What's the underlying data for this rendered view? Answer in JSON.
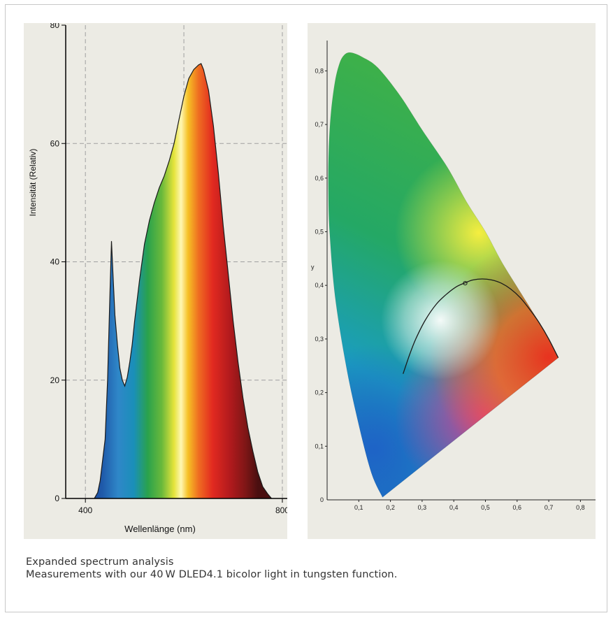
{
  "caption": {
    "title": "Expanded spectrum analysis",
    "text": "Measurements with our 40 W DLED4.1 bicolor light in tungsten function."
  },
  "colors": {
    "panel_bg": "#ecebe4",
    "grid": "#a0a0a0",
    "axis": "#000000",
    "curve": "#1a1a1a"
  },
  "chart_data": [
    {
      "type": "area",
      "title": "",
      "xlabel": "Wellenlänge (nm)",
      "ylabel": "Intensität (Relativ)",
      "xlim": [
        360,
        810
      ],
      "ylim": [
        0,
        80
      ],
      "x_ticks": [
        400,
        800
      ],
      "y_ticks": [
        0,
        20,
        40,
        60,
        80
      ],
      "x_tick_labels": [
        "400",
        "800"
      ],
      "y_tick_labels": [
        "0",
        "20",
        "40",
        "60",
        "80"
      ],
      "x_grid": [
        400,
        600,
        800
      ],
      "y_grid": [
        20,
        40,
        60
      ],
      "grid": true,
      "fill": "visible-spectrum gradient",
      "series": [
        {
          "x": [
            418,
            425,
            430,
            440,
            445,
            450,
            453,
            456,
            460,
            465,
            470,
            475,
            480,
            485,
            490,
            495,
            500,
            510,
            520,
            530,
            540,
            550,
            560,
            570,
            580,
            590,
            600,
            610,
            620,
            630,
            635,
            640,
            650,
            660,
            670,
            680,
            690,
            700,
            710,
            720,
            730,
            740,
            750,
            760,
            770,
            778
          ],
          "y": [
            0,
            1,
            3,
            10,
            20,
            35,
            43.5,
            38,
            31,
            26,
            22,
            20,
            19,
            20.5,
            23,
            26,
            30,
            37,
            43,
            47,
            50,
            52.5,
            54.5,
            57,
            60,
            64,
            68,
            71,
            72.5,
            73.3,
            73.5,
            72.5,
            69,
            63,
            55,
            46,
            38,
            30,
            23,
            17,
            12,
            8,
            4.5,
            2,
            0.8,
            0
          ]
        }
      ]
    },
    {
      "type": "scatter",
      "title": "",
      "xlabel": "",
      "ylabel": "y",
      "xlim": [
        0,
        0.83
      ],
      "ylim": [
        0,
        0.85
      ],
      "x_ticks": [
        0.1,
        0.2,
        0.3,
        0.4,
        0.5,
        0.6,
        0.7,
        0.8
      ],
      "y_ticks": [
        0.1,
        0.2,
        0.3,
        0.4,
        0.5,
        0.6,
        0.7,
        0.8
      ],
      "x_tick_labels": [
        "0,1",
        "0,2",
        "0,3",
        "0,4",
        "0,5",
        "0,6",
        "0,7",
        "0,8"
      ],
      "y_tick_labels": [
        "0,1",
        "0,2",
        "0,3",
        "0,4",
        "0,5",
        "0,6",
        "0,7",
        "0,8"
      ],
      "origin_label": "0",
      "grid": false,
      "locus": {
        "x": [
          0.175,
          0.14,
          0.1,
          0.06,
          0.025,
          0.008,
          0.004,
          0.005,
          0.012,
          0.025,
          0.04,
          0.055,
          0.075,
          0.11,
          0.16,
          0.23,
          0.3,
          0.38,
          0.44,
          0.5,
          0.55,
          0.6,
          0.66,
          0.7,
          0.73
        ],
        "y": [
          0.005,
          0.05,
          0.14,
          0.25,
          0.38,
          0.5,
          0.58,
          0.65,
          0.72,
          0.78,
          0.815,
          0.83,
          0.834,
          0.826,
          0.806,
          0.754,
          0.69,
          0.62,
          0.556,
          0.5,
          0.445,
          0.397,
          0.34,
          0.3,
          0.265
        ]
      },
      "planckian_locus": {
        "x": [
          0.24,
          0.26,
          0.28,
          0.31,
          0.345,
          0.38,
          0.41,
          0.437,
          0.46,
          0.49,
          0.52,
          0.55,
          0.58,
          0.61,
          0.64,
          0.67,
          0.7,
          0.73
        ],
        "y": [
          0.235,
          0.27,
          0.3,
          0.335,
          0.365,
          0.385,
          0.398,
          0.405,
          0.41,
          0.412,
          0.41,
          0.404,
          0.393,
          0.377,
          0.355,
          0.33,
          0.3,
          0.265
        ]
      },
      "marker": {
        "x": 0.436,
        "y": 0.404
      }
    }
  ]
}
